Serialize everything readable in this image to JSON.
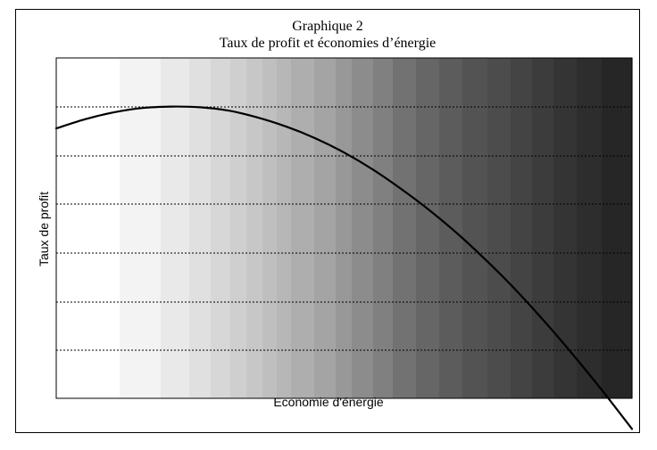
{
  "chart_data": {
    "type": "line",
    "title": "Graphique 2",
    "subtitle": "Taux de profit et économies d’énergie",
    "xlabel": "Economie d'énergie",
    "ylabel": "Taux de profit",
    "grid": "horizontal-dotted",
    "background": "gradient-white-to-black",
    "series": [
      {
        "x": [
          0,
          0.05,
          0.1,
          0.15,
          0.2,
          0.25,
          0.3,
          0.35,
          0.4,
          0.45,
          0.5,
          0.55,
          0.6,
          0.65,
          0.7,
          0.75,
          0.8,
          0.85,
          0.9,
          0.95,
          1.0
        ],
        "y": [
          0.793,
          0.82,
          0.84,
          0.853,
          0.857,
          0.855,
          0.845,
          0.825,
          0.798,
          0.764,
          0.722,
          0.672,
          0.614,
          0.55,
          0.479,
          0.4,
          0.315,
          0.222,
          0.123,
          0.019,
          -0.09
        ]
      }
    ],
    "line_color": "#000000"
  }
}
